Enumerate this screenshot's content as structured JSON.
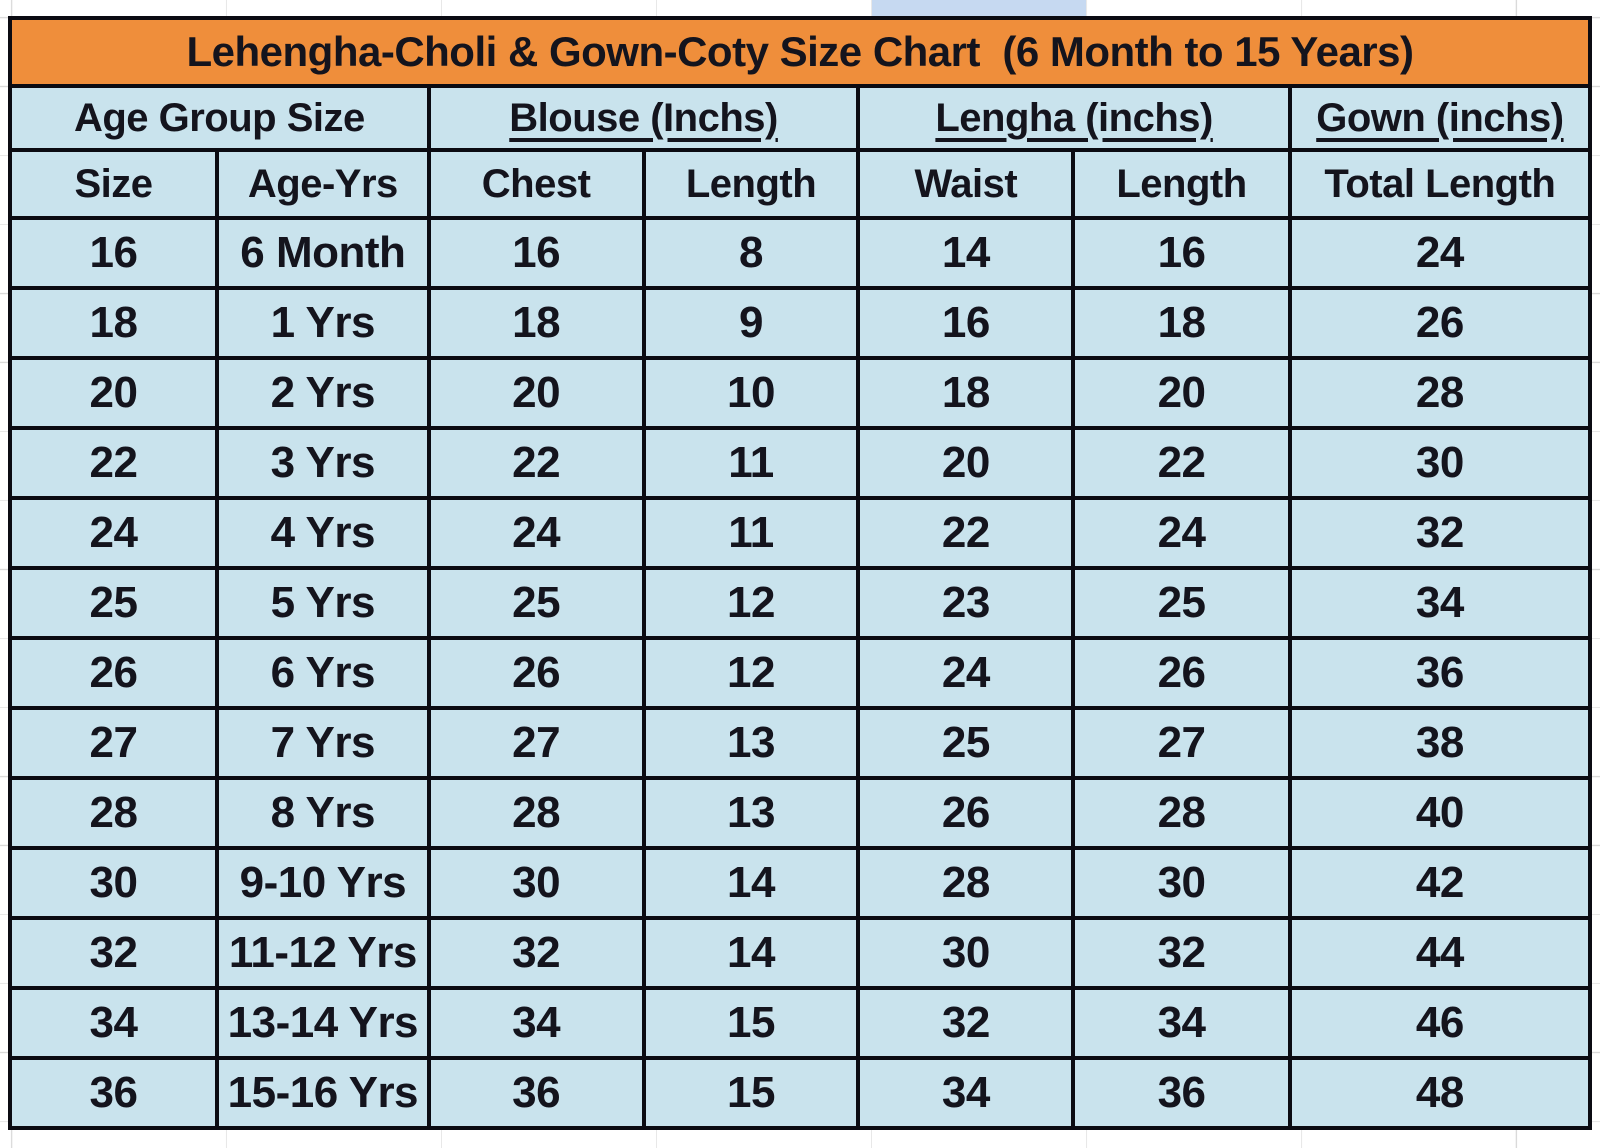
{
  "page": {
    "background": "#ffffff",
    "gridline_color": "#d9d9d9",
    "highlight_cell_color": "#c6d9f1"
  },
  "chart_data": {
    "type": "table",
    "title": "Lehengha-Choli & Gown-Coty Size Chart  (6 Month to 15 Years)",
    "title_bg": "#ef8e3b",
    "cell_bg": "#c9e3ed",
    "border_color": "#0b0b12",
    "text_color": "#14141d",
    "column_groups": [
      {
        "label": "Age Group Size",
        "colspan": 2,
        "underlined": false
      },
      {
        "label": "Blouse (Inchs)",
        "colspan": 2,
        "underlined": true
      },
      {
        "label": "Lengha (inchs)",
        "colspan": 2,
        "underlined": true
      },
      {
        "label": "Gown (inchs)",
        "colspan": 1,
        "underlined": true
      }
    ],
    "columns": [
      "Size",
      "Age-Yrs",
      "Chest",
      "Length",
      "Waist",
      "Length",
      "Total Length"
    ],
    "rows": [
      [
        "16",
        "6 Month",
        "16",
        "8",
        "14",
        "16",
        "24"
      ],
      [
        "18",
        "1 Yrs",
        "18",
        "9",
        "16",
        "18",
        "26"
      ],
      [
        "20",
        "2 Yrs",
        "20",
        "10",
        "18",
        "20",
        "28"
      ],
      [
        "22",
        "3 Yrs",
        "22",
        "11",
        "20",
        "22",
        "30"
      ],
      [
        "24",
        "4 Yrs",
        "24",
        "11",
        "22",
        "24",
        "32"
      ],
      [
        "25",
        "5 Yrs",
        "25",
        "12",
        "23",
        "25",
        "34"
      ],
      [
        "26",
        "6 Yrs",
        "26",
        "12",
        "24",
        "26",
        "36"
      ],
      [
        "27",
        "7 Yrs",
        "27",
        "13",
        "25",
        "27",
        "38"
      ],
      [
        "28",
        "8 Yrs",
        "28",
        "13",
        "26",
        "28",
        "40"
      ],
      [
        "30",
        "9-10 Yrs",
        "30",
        "14",
        "28",
        "30",
        "42"
      ],
      [
        "32",
        "11-12 Yrs",
        "32",
        "14",
        "30",
        "32",
        "44"
      ],
      [
        "34",
        "13-14 Yrs",
        "34",
        "15",
        "32",
        "34",
        "46"
      ],
      [
        "36",
        "15-16 Yrs",
        "36",
        "15",
        "34",
        "36",
        "48"
      ]
    ]
  }
}
